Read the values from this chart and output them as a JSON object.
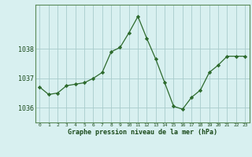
{
  "x": [
    0,
    1,
    2,
    3,
    4,
    5,
    6,
    7,
    8,
    9,
    10,
    11,
    12,
    13,
    14,
    15,
    16,
    17,
    18,
    19,
    20,
    21,
    22,
    23
  ],
  "y": [
    1036.7,
    1036.45,
    1036.5,
    1036.75,
    1036.8,
    1036.85,
    1037.0,
    1037.2,
    1037.9,
    1038.05,
    1038.55,
    1039.1,
    1038.35,
    1037.65,
    1036.85,
    1036.05,
    1035.95,
    1036.35,
    1036.6,
    1037.2,
    1037.45,
    1037.75,
    1037.75,
    1037.75
  ],
  "line_color": "#2d6a2d",
  "marker_color": "#2d6a2d",
  "bg_color": "#d8f0f0",
  "grid_color": "#a8cccc",
  "xlabel": "Graphe pression niveau de la mer (hPa)",
  "xlabel_color": "#1a4a1a",
  "tick_color": "#1a4a1a",
  "ylim": [
    1035.5,
    1039.5
  ],
  "yticks": [
    1036,
    1037,
    1038
  ],
  "xticks": [
    0,
    1,
    2,
    3,
    4,
    5,
    6,
    7,
    8,
    9,
    10,
    11,
    12,
    13,
    14,
    15,
    16,
    17,
    18,
    19,
    20,
    21,
    22,
    23
  ],
  "spine_color": "#5a8a5a"
}
